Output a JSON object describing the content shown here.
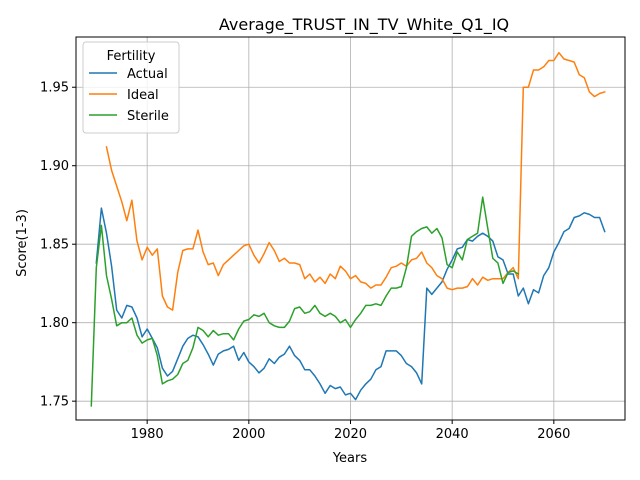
{
  "chart_data": {
    "type": "line",
    "title": "Average_TRUST_IN_TV_White_Q1_IQ",
    "xlabel": "Years",
    "ylabel": "Score(1-3)",
    "xlim": [
      1966,
      2074
    ],
    "ylim": [
      1.738,
      1.982
    ],
    "xticks": [
      1980,
      2000,
      2020,
      2040,
      2060
    ],
    "yticks": [
      1.75,
      1.8,
      1.85,
      1.9,
      1.95
    ],
    "ytick_labels": [
      "1.75",
      "1.80",
      "1.85",
      "1.90",
      "1.95"
    ],
    "grid": true,
    "legend": {
      "title": "Fertility",
      "placement": "top-left"
    },
    "colors": {
      "Actual": "#1f77b4",
      "Ideal": "#ff7f0e",
      "Sterile": "#2ca02c"
    },
    "series": [
      {
        "name": "Actual",
        "x": [
          1970,
          1971,
          1972,
          1973,
          1974,
          1975,
          1976,
          1977,
          1978,
          1979,
          1980,
          1981,
          1982,
          1983,
          1984,
          1985,
          1986,
          1987,
          1988,
          1989,
          1990,
          1991,
          1992,
          1993,
          1994,
          1995,
          1996,
          1997,
          1998,
          1999,
          2000,
          2001,
          2002,
          2003,
          2004,
          2005,
          2006,
          2007,
          2008,
          2009,
          2010,
          2011,
          2012,
          2013,
          2014,
          2015,
          2016,
          2017,
          2018,
          2019,
          2020,
          2021,
          2022,
          2023,
          2024,
          2025,
          2026,
          2027,
          2028,
          2029,
          2030,
          2031,
          2032,
          2033,
          2034,
          2035,
          2036,
          2037,
          2038,
          2039,
          2040,
          2041,
          2042,
          2043,
          2044,
          2045,
          2046,
          2047,
          2048,
          2049,
          2050,
          2051,
          2052,
          2053,
          2054,
          2055,
          2056,
          2057,
          2058,
          2059,
          2060,
          2061,
          2062,
          2063,
          2064,
          2065,
          2066,
          2067,
          2068,
          2069,
          2070
        ],
        "values": [
          1.838,
          1.873,
          1.857,
          1.836,
          1.808,
          1.803,
          1.811,
          1.81,
          1.803,
          1.791,
          1.796,
          1.79,
          1.784,
          1.771,
          1.766,
          1.769,
          1.777,
          1.785,
          1.79,
          1.792,
          1.791,
          1.786,
          1.78,
          1.773,
          1.78,
          1.782,
          1.783,
          1.785,
          1.776,
          1.781,
          1.775,
          1.772,
          1.768,
          1.771,
          1.777,
          1.774,
          1.778,
          1.78,
          1.785,
          1.779,
          1.776,
          1.77,
          1.77,
          1.766,
          1.761,
          1.755,
          1.76,
          1.758,
          1.759,
          1.754,
          1.755,
          1.751,
          1.757,
          1.761,
          1.764,
          1.77,
          1.772,
          1.782,
          1.782,
          1.782,
          1.779,
          1.774,
          1.772,
          1.768,
          1.761,
          1.822,
          1.818,
          1.822,
          1.826,
          1.834,
          1.84,
          1.847,
          1.848,
          1.853,
          1.852,
          1.855,
          1.857,
          1.855,
          1.852,
          1.842,
          1.84,
          1.831,
          1.831,
          1.817,
          1.822,
          1.812,
          1.821,
          1.819,
          1.83,
          1.835,
          1.845,
          1.851,
          1.858,
          1.86,
          1.867,
          1.868,
          1.87,
          1.869,
          1.867,
          1.867,
          1.858
        ]
      },
      {
        "name": "Ideal",
        "x": [
          1972,
          1973,
          1974,
          1975,
          1976,
          1977,
          1978,
          1979,
          1980,
          1981,
          1982,
          1983,
          1984,
          1985,
          1986,
          1987,
          1988,
          1989,
          1990,
          1991,
          1992,
          1993,
          1994,
          1995,
          1996,
          1997,
          1998,
          1999,
          2000,
          2001,
          2002,
          2003,
          2004,
          2005,
          2006,
          2007,
          2008,
          2009,
          2010,
          2011,
          2012,
          2013,
          2014,
          2015,
          2016,
          2017,
          2018,
          2019,
          2020,
          2021,
          2022,
          2023,
          2024,
          2025,
          2026,
          2027,
          2028,
          2029,
          2030,
          2031,
          2032,
          2033,
          2034,
          2035,
          2036,
          2037,
          2038,
          2039,
          2040,
          2041,
          2042,
          2043,
          2044,
          2045,
          2046,
          2047,
          2048,
          2049,
          2050,
          2051,
          2052,
          2053,
          2054,
          2055,
          2056,
          2057,
          2058,
          2059,
          2060,
          2061,
          2062,
          2063,
          2064,
          2065,
          2066,
          2067,
          2068,
          2069,
          2070
        ],
        "values": [
          1.912,
          1.897,
          1.887,
          1.877,
          1.865,
          1.878,
          1.852,
          1.84,
          1.848,
          1.843,
          1.847,
          1.817,
          1.81,
          1.808,
          1.832,
          1.846,
          1.847,
          1.847,
          1.859,
          1.845,
          1.837,
          1.838,
          1.83,
          1.837,
          1.84,
          1.843,
          1.846,
          1.849,
          1.85,
          1.843,
          1.838,
          1.844,
          1.851,
          1.846,
          1.839,
          1.841,
          1.838,
          1.838,
          1.837,
          1.828,
          1.831,
          1.826,
          1.829,
          1.825,
          1.831,
          1.828,
          1.836,
          1.833,
          1.828,
          1.83,
          1.826,
          1.825,
          1.822,
          1.824,
          1.824,
          1.829,
          1.835,
          1.836,
          1.838,
          1.836,
          1.84,
          1.841,
          1.845,
          1.838,
          1.835,
          1.83,
          1.828,
          1.822,
          1.821,
          1.822,
          1.822,
          1.823,
          1.828,
          1.824,
          1.829,
          1.827,
          1.828,
          1.828,
          1.828,
          1.832,
          1.835,
          1.828,
          1.95,
          1.95,
          1.961,
          1.961,
          1.963,
          1.967,
          1.967,
          1.972,
          1.968,
          1.967,
          1.966,
          1.958,
          1.956,
          1.947,
          1.944,
          1.946,
          1.947
        ]
      },
      {
        "name": "Sterile",
        "x": [
          1969,
          1970,
          1971,
          1972,
          1973,
          1974,
          1975,
          1976,
          1977,
          1978,
          1979,
          1980,
          1981,
          1982,
          1983,
          1984,
          1985,
          1986,
          1987,
          1988,
          1989,
          1990,
          1991,
          1992,
          1993,
          1994,
          1995,
          1996,
          1997,
          1998,
          1999,
          2000,
          2001,
          2002,
          2003,
          2004,
          2005,
          2006,
          2007,
          2008,
          2009,
          2010,
          2011,
          2012,
          2013,
          2014,
          2015,
          2016,
          2017,
          2018,
          2019,
          2020,
          2021,
          2022,
          2023,
          2024,
          2025,
          2026,
          2027,
          2028,
          2029,
          2030,
          2031,
          2032,
          2033,
          2034,
          2035,
          2036,
          2037,
          2038,
          2039,
          2040,
          2041,
          2042,
          2043,
          2044,
          2045,
          2046,
          2047,
          2048,
          2049,
          2050,
          2051,
          2052,
          2053
        ],
        "values": [
          1.747,
          1.835,
          1.862,
          1.83,
          1.815,
          1.798,
          1.8,
          1.8,
          1.803,
          1.792,
          1.787,
          1.789,
          1.79,
          1.779,
          1.761,
          1.763,
          1.764,
          1.767,
          1.774,
          1.776,
          1.784,
          1.797,
          1.795,
          1.791,
          1.795,
          1.792,
          1.793,
          1.793,
          1.789,
          1.796,
          1.801,
          1.802,
          1.805,
          1.804,
          1.806,
          1.8,
          1.798,
          1.797,
          1.797,
          1.801,
          1.809,
          1.81,
          1.806,
          1.807,
          1.811,
          1.806,
          1.804,
          1.806,
          1.804,
          1.8,
          1.802,
          1.797,
          1.802,
          1.806,
          1.811,
          1.811,
          1.812,
          1.811,
          1.817,
          1.822,
          1.822,
          1.823,
          1.835,
          1.855,
          1.858,
          1.86,
          1.861,
          1.857,
          1.86,
          1.854,
          1.837,
          1.835,
          1.845,
          1.84,
          1.853,
          1.855,
          1.857,
          1.88,
          1.86,
          1.841,
          1.838,
          1.825,
          1.832,
          1.833,
          1.831
        ]
      }
    ]
  }
}
